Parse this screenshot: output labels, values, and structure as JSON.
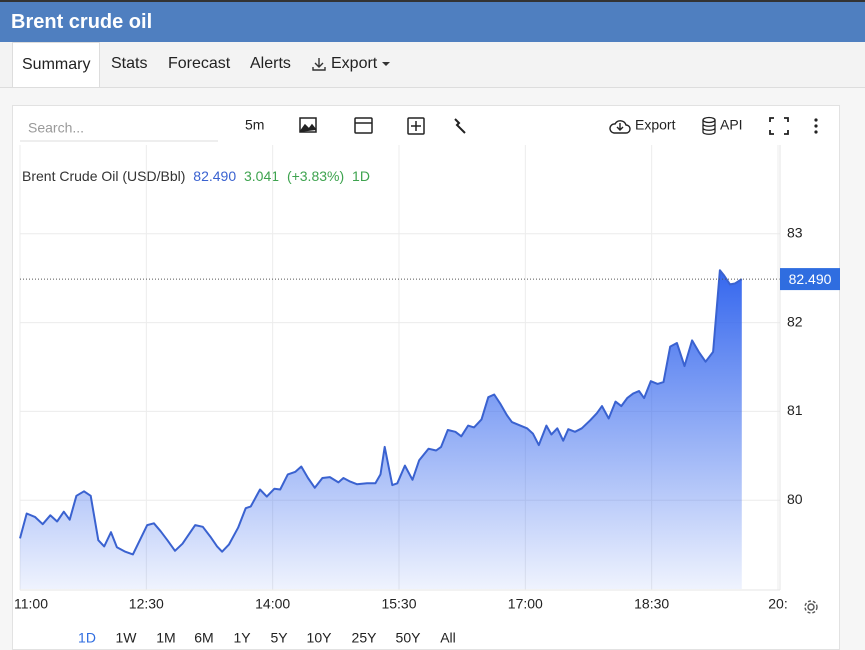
{
  "header": {
    "title": "Brent crude oil"
  },
  "tabs": [
    "Summary",
    "Stats",
    "Forecast",
    "Alerts",
    "Export"
  ],
  "toolbar": {
    "search": "Search...",
    "interval": "5m",
    "export": "Export",
    "api": "API"
  },
  "chart_data": {
    "type": "area",
    "legend": {
      "name": "Brent Crude Oil (USD/Bbl)",
      "price": "82.490",
      "change": "3.041",
      "change_pct": "(+3.83%)",
      "period": "1D"
    },
    "x": [
      11.0,
      11.08,
      11.18,
      11.27,
      11.36,
      11.44,
      11.52,
      11.59,
      11.67,
      11.76,
      11.84,
      11.93,
      12.0,
      12.08,
      12.15,
      12.25,
      12.34,
      12.51,
      12.59,
      12.67,
      12.75,
      12.84,
      12.93,
      13.08,
      13.17,
      13.26,
      13.34,
      13.4,
      13.48,
      13.59,
      13.68,
      13.74,
      13.85,
      13.93,
      14.02,
      14.09,
      14.18,
      14.27,
      14.34,
      14.42,
      14.5,
      14.59,
      14.68,
      14.78,
      14.84,
      14.92,
      15.0,
      15.12,
      15.22,
      15.28,
      15.33,
      15.42,
      15.48,
      15.57,
      15.66,
      15.74,
      15.85,
      15.94,
      16.0,
      16.08,
      16.17,
      16.24,
      16.32,
      16.39,
      16.48,
      16.56,
      16.63,
      16.7,
      16.78,
      16.84,
      16.94,
      17.02,
      17.09,
      17.16,
      17.25,
      17.31,
      17.38,
      17.45,
      17.51,
      17.59,
      17.67,
      17.77,
      17.85,
      17.91,
      17.99,
      18.07,
      18.14,
      18.21,
      18.28,
      18.35,
      18.41,
      18.49,
      18.57,
      18.64,
      18.72,
      18.8,
      18.89,
      18.98,
      19.06,
      19.14,
      19.23,
      19.31,
      19.36,
      19.43,
      19.49,
      19.57
    ],
    "series": [
      {
        "name": "Brent Crude Oil (USD/Bbl)",
        "color": "#3a62d0",
        "values": [
          79.57,
          79.85,
          79.81,
          79.73,
          79.83,
          79.76,
          79.87,
          79.78,
          80.05,
          80.1,
          80.05,
          79.55,
          79.48,
          79.64,
          79.47,
          79.42,
          79.39,
          79.72,
          79.74,
          79.65,
          79.55,
          79.43,
          79.51,
          79.72,
          79.7,
          79.59,
          79.48,
          79.42,
          79.5,
          79.69,
          79.91,
          79.93,
          80.12,
          80.04,
          80.13,
          80.12,
          80.29,
          80.32,
          80.38,
          80.25,
          80.14,
          80.25,
          80.26,
          80.2,
          80.25,
          80.21,
          80.18,
          80.19,
          80.19,
          80.29,
          80.6,
          80.17,
          80.19,
          80.39,
          80.23,
          80.45,
          80.58,
          80.56,
          80.6,
          80.79,
          80.77,
          80.72,
          80.84,
          80.82,
          80.91,
          81.16,
          81.19,
          81.09,
          80.96,
          80.88,
          80.84,
          80.81,
          80.75,
          80.62,
          80.84,
          80.74,
          80.81,
          80.67,
          80.8,
          80.77,
          80.81,
          80.9,
          80.98,
          81.06,
          80.92,
          81.11,
          81.06,
          81.15,
          81.2,
          81.23,
          81.15,
          81.34,
          81.31,
          81.33,
          81.73,
          81.77,
          81.51,
          81.8,
          81.67,
          81.56,
          81.67,
          82.59,
          82.53,
          82.43,
          82.44,
          82.49
        ]
      }
    ],
    "xlim": [
      11,
      20
    ],
    "xticks": [
      {
        "value": 11,
        "label": "11:00"
      },
      {
        "value": 12.5,
        "label": "12:30"
      },
      {
        "value": 14,
        "label": "14:00"
      },
      {
        "value": 15.5,
        "label": "15:30"
      },
      {
        "value": 17,
        "label": "17:00"
      },
      {
        "value": 18.5,
        "label": "18:30"
      },
      {
        "value": 20,
        "label": "20:"
      }
    ],
    "ylim": [
      79,
      84
    ],
    "yticks": [
      80,
      81,
      82,
      83
    ],
    "grid": true,
    "ranges": [
      "1D",
      "1W",
      "1M",
      "6M",
      "1Y",
      "5Y",
      "10Y",
      "25Y",
      "50Y",
      "All"
    ]
  }
}
